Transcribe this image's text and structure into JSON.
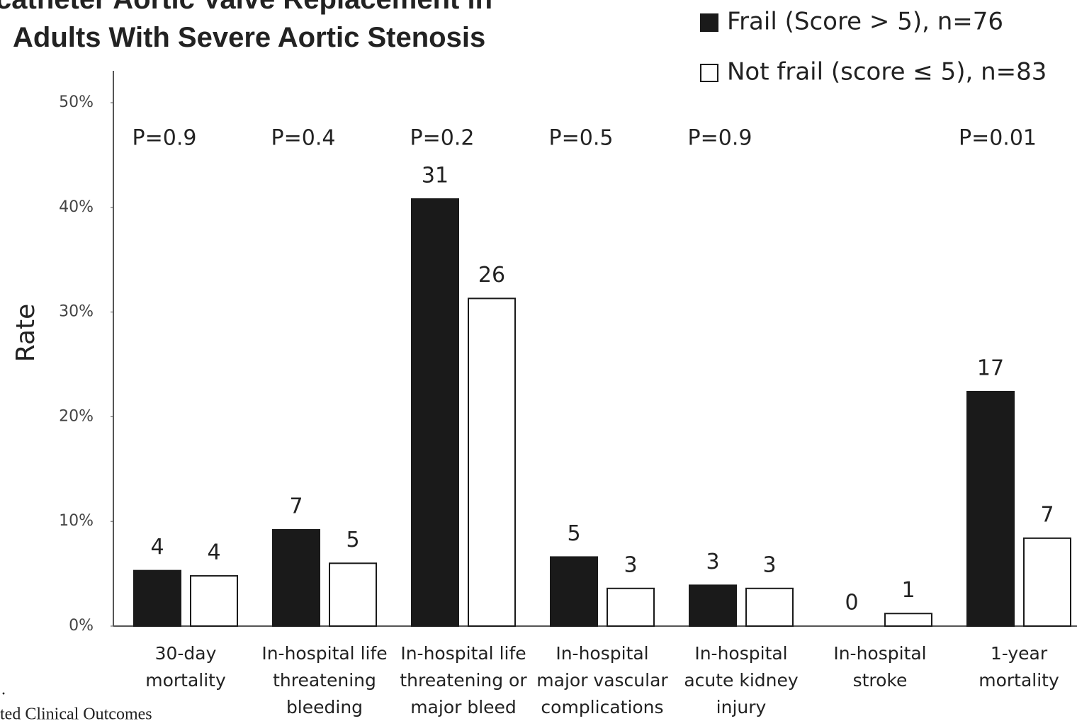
{
  "chart_data": {
    "type": "bar",
    "title": [
      "catheter Aortic Valve Replacement in",
      "Adults With Severe Aortic Stenosis"
    ],
    "caption": ".",
    "footer": "ted Clinical Outcomes",
    "y_label": "Rate",
    "categories": [
      [
        "30-day",
        "mortality"
      ],
      [
        "In-hospital life",
        "threatening",
        "bleeding"
      ],
      [
        "In-hospital life",
        "threatening or",
        "major bleed"
      ],
      [
        "In-hospital",
        "major vascular",
        "complications"
      ],
      [
        "In-hospital",
        "acute kidney",
        "injury"
      ],
      [
        "In-hospital",
        "stroke"
      ],
      [
        "1-year",
        "mortality"
      ]
    ],
    "p_values": [
      "P=0.9",
      "P=0.4",
      "P=0.2",
      "P=0.5",
      "P=0.9",
      null,
      "P=0.01"
    ],
    "series": [
      {
        "name": "Frail (Score > 5), n=76",
        "color": "#1a1a1a",
        "values": [
          5.3,
          9.2,
          40.8,
          6.6,
          3.9,
          0,
          22.4
        ],
        "counts": [
          4,
          7,
          31,
          5,
          3,
          0,
          17
        ]
      },
      {
        "name": "Not frail (score ≤ 5), n=83",
        "color": "#ffffff",
        "values": [
          4.8,
          6.0,
          31.3,
          3.6,
          3.6,
          1.2,
          8.4
        ],
        "counts": [
          4,
          5,
          26,
          3,
          3,
          1,
          7
        ]
      }
    ],
    "ylim": [
      0,
      50
    ],
    "yticks": [
      {
        "value": 0,
        "label": "0%"
      },
      {
        "value": 10,
        "label": "10%"
      },
      {
        "value": 20,
        "label": "20%"
      },
      {
        "value": 30,
        "label": "30%"
      },
      {
        "value": 40,
        "label": "40%"
      },
      {
        "value": 50,
        "label": "50%"
      }
    ],
    "grid": false,
    "legend": "top-right"
  }
}
